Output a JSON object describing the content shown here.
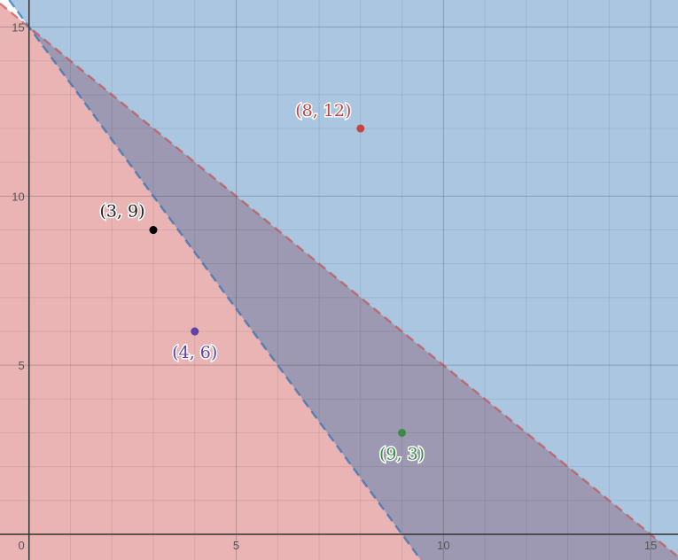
{
  "chart_data": {
    "type": "scatter",
    "title": "",
    "xlabel": "",
    "ylabel": "",
    "xlim": [
      -0.7,
      15.66
    ],
    "ylim": [
      -0.76,
      15.8
    ],
    "grid": true,
    "x_ticks": [
      "0",
      "5",
      "10",
      "15"
    ],
    "y_ticks": [
      "5",
      "10",
      "15"
    ],
    "regions": [
      {
        "inequality": "y < 15 - x",
        "boundary": "dashed",
        "color": "#c74440"
      },
      {
        "inequality": "y > 15 - 5x/3",
        "boundary": "dashed",
        "color": "#2d70b3"
      }
    ],
    "points": [
      {
        "x": 8,
        "y": 12,
        "label": "(8, 12)",
        "color": "#c74440"
      },
      {
        "x": 3,
        "y": 9,
        "label": "(3, 9)",
        "color": "#000000"
      },
      {
        "x": 4,
        "y": 6,
        "label": "(4, 6)",
        "color": "#6042a6"
      },
      {
        "x": 9,
        "y": 3,
        "label": "(9, 3)",
        "color": "#388c46"
      }
    ]
  }
}
